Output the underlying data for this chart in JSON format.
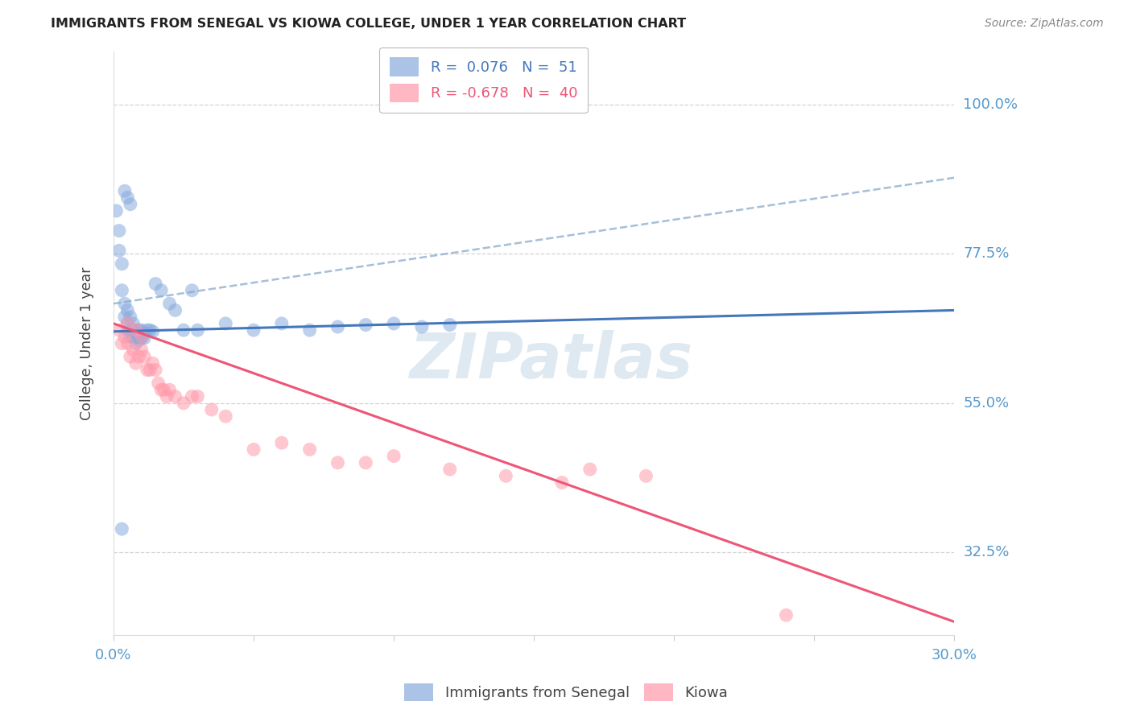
{
  "title": "IMMIGRANTS FROM SENEGAL VS KIOWA COLLEGE, UNDER 1 YEAR CORRELATION CHART",
  "source": "Source: ZipAtlas.com",
  "ylabel": "College, Under 1 year",
  "ytick_labels": [
    "100.0%",
    "77.5%",
    "55.0%",
    "32.5%"
  ],
  "ytick_values": [
    1.0,
    0.775,
    0.55,
    0.325
  ],
  "xlim": [
    0.0,
    0.3
  ],
  "ylim": [
    0.2,
    1.08
  ],
  "background_color": "#ffffff",
  "grid_color": "#c8c8c8",
  "watermark_text": "ZIPatlas",
  "blue_scatter_color": "#88aadd",
  "pink_scatter_color": "#ff99aa",
  "blue_line_color": "#4477bb",
  "pink_line_color": "#ee5577",
  "blue_dash_color": "#88aacc",
  "axis_label_color": "#5599cc",
  "title_color": "#222222",
  "source_color": "#888888",
  "senegal_points": [
    [
      0.001,
      0.84
    ],
    [
      0.002,
      0.81
    ],
    [
      0.002,
      0.78
    ],
    [
      0.003,
      0.76
    ],
    [
      0.003,
      0.72
    ],
    [
      0.004,
      0.7
    ],
    [
      0.004,
      0.68
    ],
    [
      0.005,
      0.69
    ],
    [
      0.005,
      0.67
    ],
    [
      0.005,
      0.66
    ],
    [
      0.006,
      0.68
    ],
    [
      0.006,
      0.66
    ],
    [
      0.006,
      0.65
    ],
    [
      0.007,
      0.67
    ],
    [
      0.007,
      0.66
    ],
    [
      0.007,
      0.65
    ],
    [
      0.008,
      0.66
    ],
    [
      0.008,
      0.65
    ],
    [
      0.008,
      0.64
    ],
    [
      0.009,
      0.66
    ],
    [
      0.009,
      0.65
    ],
    [
      0.009,
      0.645
    ],
    [
      0.01,
      0.66
    ],
    [
      0.01,
      0.65
    ],
    [
      0.01,
      0.648
    ],
    [
      0.011,
      0.655
    ],
    [
      0.011,
      0.648
    ],
    [
      0.012,
      0.66
    ],
    [
      0.013,
      0.66
    ],
    [
      0.014,
      0.658
    ],
    [
      0.015,
      0.73
    ],
    [
      0.017,
      0.72
    ],
    [
      0.02,
      0.7
    ],
    [
      0.022,
      0.69
    ],
    [
      0.025,
      0.66
    ],
    [
      0.028,
      0.72
    ],
    [
      0.03,
      0.66
    ],
    [
      0.04,
      0.67
    ],
    [
      0.05,
      0.66
    ],
    [
      0.06,
      0.67
    ],
    [
      0.07,
      0.66
    ],
    [
      0.08,
      0.665
    ],
    [
      0.09,
      0.668
    ],
    [
      0.1,
      0.67
    ],
    [
      0.11,
      0.665
    ],
    [
      0.12,
      0.668
    ],
    [
      0.004,
      0.87
    ],
    [
      0.005,
      0.86
    ],
    [
      0.006,
      0.85
    ],
    [
      0.003,
      0.36
    ],
    [
      0.01,
      0.655
    ]
  ],
  "kiowa_points": [
    [
      0.002,
      0.66
    ],
    [
      0.003,
      0.64
    ],
    [
      0.004,
      0.65
    ],
    [
      0.005,
      0.67
    ],
    [
      0.005,
      0.64
    ],
    [
      0.006,
      0.62
    ],
    [
      0.007,
      0.63
    ],
    [
      0.008,
      0.61
    ],
    [
      0.009,
      0.62
    ],
    [
      0.01,
      0.65
    ],
    [
      0.01,
      0.63
    ],
    [
      0.011,
      0.62
    ],
    [
      0.012,
      0.6
    ],
    [
      0.013,
      0.6
    ],
    [
      0.014,
      0.61
    ],
    [
      0.015,
      0.6
    ],
    [
      0.016,
      0.58
    ],
    [
      0.017,
      0.57
    ],
    [
      0.018,
      0.57
    ],
    [
      0.019,
      0.56
    ],
    [
      0.02,
      0.57
    ],
    [
      0.022,
      0.56
    ],
    [
      0.025,
      0.55
    ],
    [
      0.028,
      0.56
    ],
    [
      0.03,
      0.56
    ],
    [
      0.035,
      0.54
    ],
    [
      0.04,
      0.53
    ],
    [
      0.05,
      0.48
    ],
    [
      0.06,
      0.49
    ],
    [
      0.07,
      0.48
    ],
    [
      0.08,
      0.46
    ],
    [
      0.09,
      0.46
    ],
    [
      0.1,
      0.47
    ],
    [
      0.12,
      0.45
    ],
    [
      0.14,
      0.44
    ],
    [
      0.16,
      0.43
    ],
    [
      0.008,
      0.66
    ],
    [
      0.17,
      0.45
    ],
    [
      0.19,
      0.44
    ],
    [
      0.24,
      0.23
    ]
  ],
  "senegal_line_x": [
    0.0,
    0.3
  ],
  "senegal_line_y": [
    0.658,
    0.69
  ],
  "kiowa_line_x": [
    0.0,
    0.3
  ],
  "kiowa_line_y": [
    0.67,
    0.22
  ],
  "dash_line_x": [
    0.0,
    0.3
  ],
  "dash_line_y": [
    0.7,
    0.89
  ]
}
